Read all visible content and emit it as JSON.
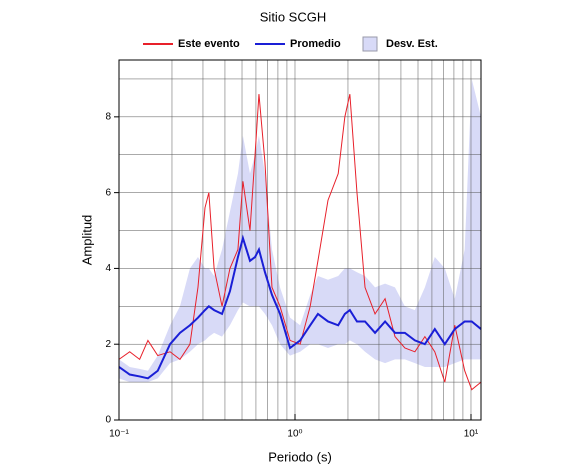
{
  "chart_data": {
    "type": "line",
    "title": "Sitio SCGH",
    "xlabel": "Periodo (s)",
    "ylabel": "Amplitud",
    "xscale": "log",
    "grid": true,
    "x": [
      0.1,
      0.115,
      0.131,
      0.146,
      0.166,
      0.195,
      0.222,
      0.253,
      0.281,
      0.308,
      0.324,
      0.347,
      0.385,
      0.427,
      0.474,
      0.506,
      0.555,
      0.593,
      0.624,
      0.675,
      0.74,
      0.822,
      0.937,
      1.07,
      1.22,
      1.35,
      1.54,
      1.76,
      1.92,
      2.05,
      2.25,
      2.5,
      2.85,
      3.25,
      3.7,
      4.21,
      4.8,
      5.47,
      6.23,
      7.1,
      8.09,
      9.21,
      10.1,
      11.4
    ],
    "series": [
      {
        "name": "Este evento",
        "color": "#e8202a",
        "width": 1,
        "values": [
          1.6,
          1.8,
          1.6,
          2.1,
          1.7,
          1.8,
          1.6,
          2.0,
          3.5,
          5.6,
          6.0,
          4.0,
          3.0,
          4.0,
          4.5,
          6.3,
          5.0,
          7.0,
          8.6,
          6.8,
          3.5,
          3.0,
          2.1,
          2.0,
          3.0,
          4.2,
          5.8,
          6.5,
          8.0,
          8.6,
          6.0,
          3.5,
          2.8,
          3.2,
          2.2,
          1.9,
          1.8,
          2.2,
          1.8,
          1.0,
          2.5,
          1.3,
          0.8,
          1.0
        ]
      },
      {
        "name": "Promedio",
        "color": "#1a1fd6",
        "width": 2,
        "values": [
          1.4,
          1.2,
          1.15,
          1.1,
          1.3,
          2.0,
          2.3,
          2.5,
          2.7,
          2.9,
          3.0,
          2.9,
          2.8,
          3.4,
          4.3,
          4.8,
          4.2,
          4.3,
          4.5,
          3.9,
          3.3,
          2.8,
          1.9,
          2.1,
          2.5,
          2.8,
          2.6,
          2.5,
          2.8,
          2.9,
          2.6,
          2.6,
          2.3,
          2.6,
          2.3,
          2.3,
          2.1,
          2.0,
          2.4,
          2.0,
          2.4,
          2.6,
          2.6,
          2.4
        ]
      }
    ],
    "band": {
      "name": "Desv. Est.",
      "color": "#d8daf7",
      "lower": [
        1.1,
        1.0,
        1.0,
        1.0,
        1.1,
        1.5,
        1.6,
        1.8,
        2.0,
        2.1,
        2.2,
        2.3,
        2.2,
        2.5,
        2.9,
        3.1,
        3.0,
        3.0,
        3.0,
        2.8,
        2.5,
        2.0,
        1.7,
        1.8,
        2.0,
        2.0,
        1.9,
        2.0,
        2.0,
        2.1,
        2.0,
        1.8,
        1.6,
        1.5,
        1.6,
        1.6,
        1.5,
        1.4,
        1.4,
        1.4,
        1.5,
        1.6,
        1.6,
        1.6
      ],
      "upper": [
        1.6,
        1.4,
        1.35,
        1.3,
        1.7,
        2.5,
        3.0,
        4.0,
        4.3,
        4.0,
        4.0,
        3.8,
        4.5,
        5.5,
        6.5,
        7.5,
        6.5,
        7.0,
        7.5,
        6.5,
        4.5,
        3.5,
        2.7,
        2.5,
        3.3,
        3.8,
        3.7,
        3.8,
        4.0,
        4.0,
        3.9,
        3.8,
        3.5,
        3.6,
        3.5,
        3.0,
        2.9,
        3.5,
        4.3,
        4.0,
        3.2,
        4.5,
        9.0,
        8.0
      ]
    },
    "xlim": [
      0.1,
      11.4
    ],
    "ylim": [
      0,
      9.5
    ],
    "xticks": [
      {
        "value": 0.1,
        "label": "10⁻¹"
      },
      {
        "value": 1,
        "label": "10⁰"
      },
      {
        "value": 10,
        "label": "10¹"
      }
    ],
    "xminor": [
      0.2,
      0.3,
      0.4,
      0.5,
      0.6,
      0.7,
      0.8,
      0.9,
      2,
      3,
      4,
      5,
      6,
      7,
      8,
      9
    ],
    "yticks": [
      0,
      2,
      4,
      6,
      8
    ],
    "yminor": [
      1,
      3,
      5,
      7,
      9
    ]
  }
}
